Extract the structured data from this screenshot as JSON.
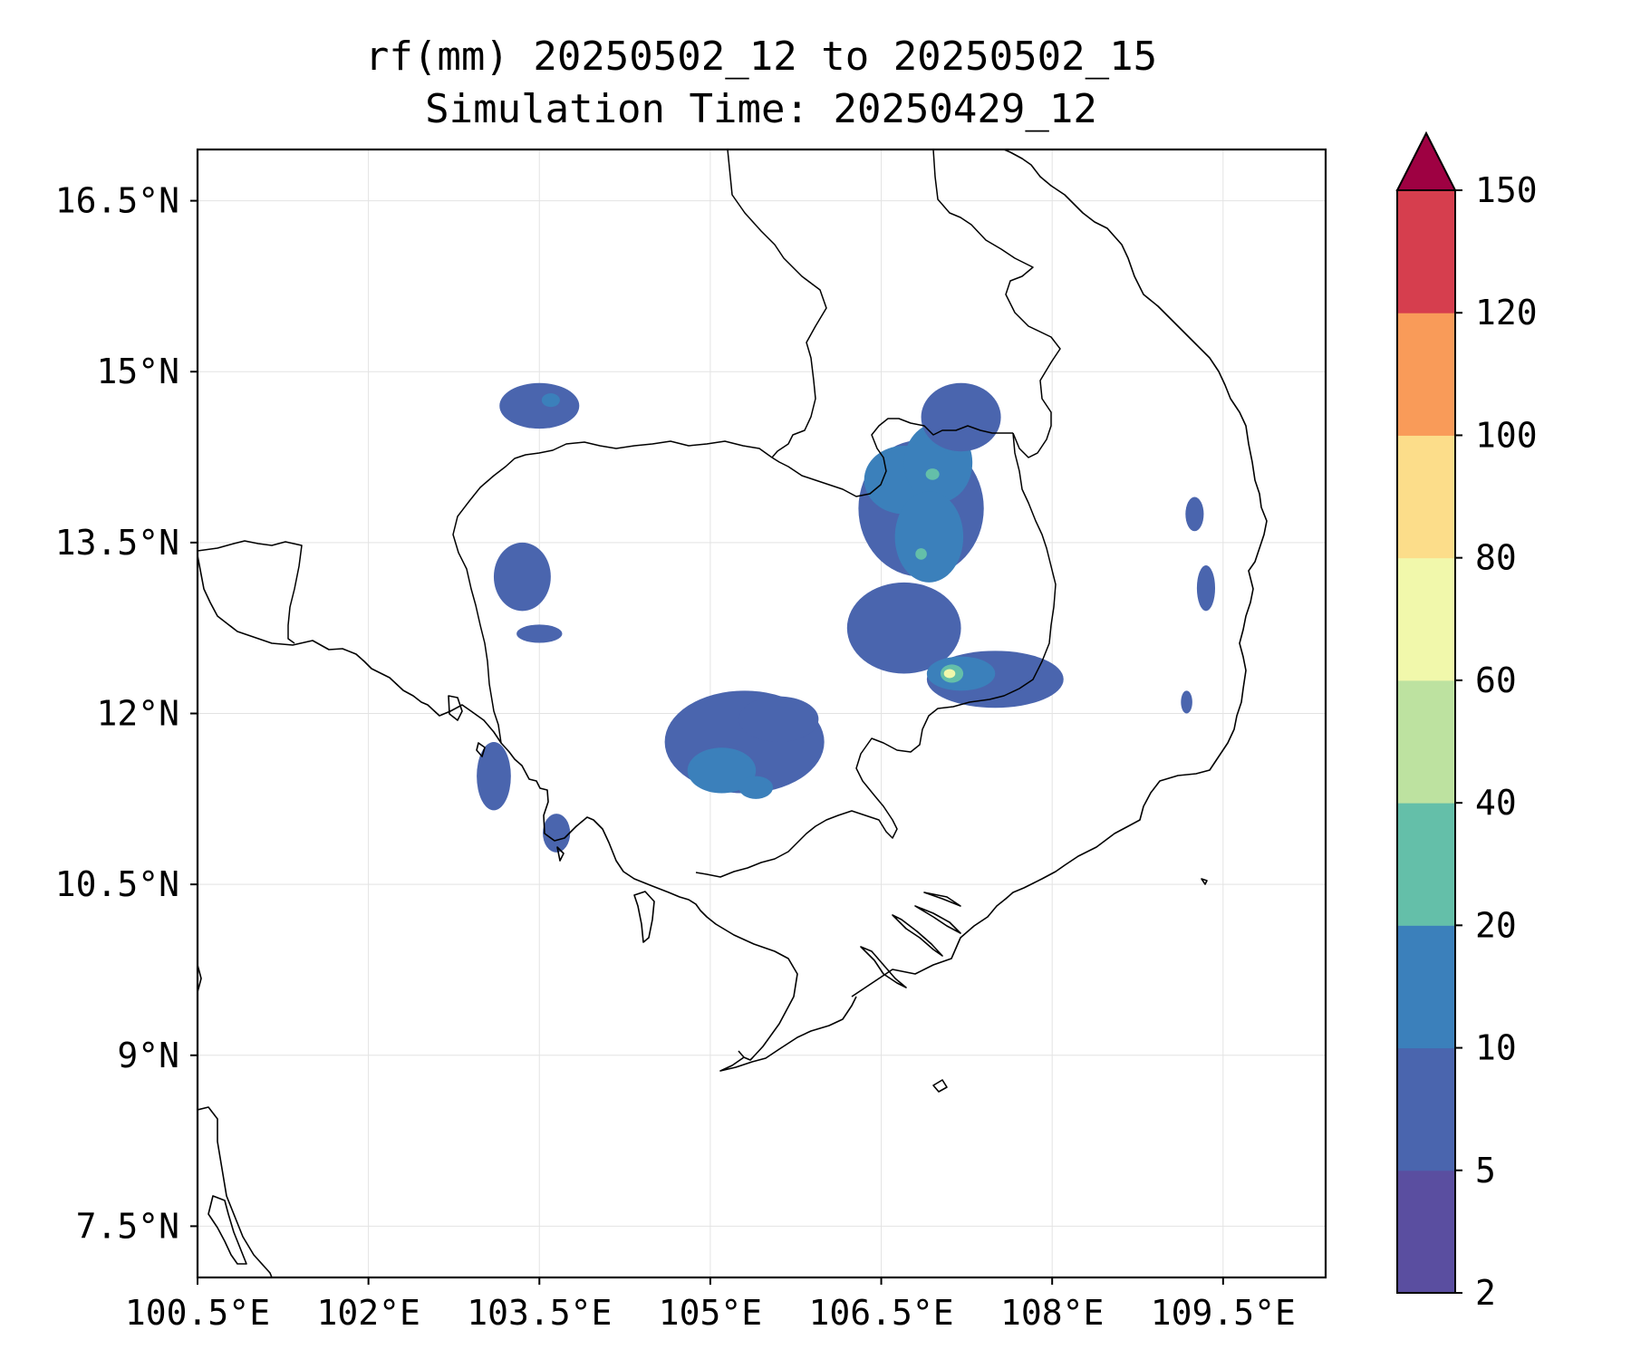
{
  "title_line1": "rf(mm) 20250502_12 to 20250502_15",
  "title_line2": "Simulation Time: 20250429_12",
  "chart_data": {
    "type": "heatmap",
    "title": "rf(mm) 20250502_12 to 20250502_15",
    "subtitle": "Simulation Time: 20250429_12",
    "xlim": [
      100.5,
      110.4
    ],
    "ylim": [
      7.05,
      16.95
    ],
    "xticks": [
      100.5,
      102.0,
      103.5,
      105.0,
      106.5,
      108.0,
      109.5
    ],
    "xtick_labels": [
      "100.5°E",
      "102°E",
      "103.5°E",
      "105°E",
      "106.5°E",
      "108°E",
      "109.5°E"
    ],
    "yticks": [
      7.5,
      9.0,
      10.5,
      12.0,
      13.5,
      15.0,
      16.5
    ],
    "ytick_labels": [
      "7.5°N",
      "9°N",
      "10.5°N",
      "12°N",
      "13.5°N",
      "15°N",
      "16.5°N"
    ],
    "grid": true,
    "colorbar": {
      "levels": [
        2,
        5,
        10,
        20,
        40,
        60,
        80,
        100,
        120,
        150
      ],
      "level_labels": [
        "2",
        "5",
        "10",
        "20",
        "40",
        "60",
        "80",
        "100",
        "120",
        "150"
      ],
      "colors": [
        "#5a4ea0",
        "#4a65ae",
        "#3b80bb",
        "#64bfa9",
        "#bde2a0",
        "#f1f8ab",
        "#fcdd8a",
        "#f99b59",
        "#d63e4e"
      ],
      "extend_color": "#9e0142",
      "extend": "max"
    },
    "rain_areas": [
      {
        "lon": 106.85,
        "lat": 13.8,
        "rx": 0.55,
        "ry": 0.6,
        "level": 5
      },
      {
        "lon": 106.7,
        "lat": 14.05,
        "rx": 0.35,
        "ry": 0.3,
        "level": 10
      },
      {
        "lon": 107.0,
        "lat": 14.2,
        "rx": 0.3,
        "ry": 0.35,
        "level": 10
      },
      {
        "lon": 106.92,
        "lat": 13.55,
        "rx": 0.3,
        "ry": 0.4,
        "level": 10
      },
      {
        "lon": 106.95,
        "lat": 14.1,
        "rx": 0.06,
        "ry": 0.05,
        "level": 20
      },
      {
        "lon": 106.85,
        "lat": 13.4,
        "rx": 0.05,
        "ry": 0.05,
        "level": 20
      },
      {
        "lon": 107.2,
        "lat": 14.6,
        "rx": 0.35,
        "ry": 0.3,
        "level": 5
      },
      {
        "lon": 106.7,
        "lat": 12.75,
        "rx": 0.5,
        "ry": 0.4,
        "level": 5
      },
      {
        "lon": 107.5,
        "lat": 12.3,
        "rx": 0.6,
        "ry": 0.25,
        "level": 5
      },
      {
        "lon": 107.2,
        "lat": 12.35,
        "rx": 0.3,
        "ry": 0.15,
        "level": 10
      },
      {
        "lon": 107.12,
        "lat": 12.35,
        "rx": 0.1,
        "ry": 0.08,
        "level": 20
      },
      {
        "lon": 107.1,
        "lat": 12.35,
        "rx": 0.05,
        "ry": 0.04,
        "level": 60
      },
      {
        "lon": 105.3,
        "lat": 11.75,
        "rx": 0.7,
        "ry": 0.45,
        "level": 5
      },
      {
        "lon": 105.1,
        "lat": 11.5,
        "rx": 0.3,
        "ry": 0.2,
        "level": 10
      },
      {
        "lon": 105.4,
        "lat": 11.35,
        "rx": 0.15,
        "ry": 0.1,
        "level": 10
      },
      {
        "lon": 105.6,
        "lat": 11.95,
        "rx": 0.35,
        "ry": 0.2,
        "level": 5
      },
      {
        "lon": 103.5,
        "lat": 14.7,
        "rx": 0.35,
        "ry": 0.2,
        "level": 5
      },
      {
        "lon": 103.6,
        "lat": 14.75,
        "rx": 0.08,
        "ry": 0.06,
        "level": 10
      },
      {
        "lon": 103.35,
        "lat": 13.2,
        "rx": 0.25,
        "ry": 0.3,
        "level": 5
      },
      {
        "lon": 103.5,
        "lat": 12.7,
        "rx": 0.2,
        "ry": 0.08,
        "level": 5
      },
      {
        "lon": 103.1,
        "lat": 11.45,
        "rx": 0.15,
        "ry": 0.3,
        "level": 5
      },
      {
        "lon": 103.65,
        "lat": 10.95,
        "rx": 0.12,
        "ry": 0.17,
        "level": 5
      },
      {
        "lon": 109.35,
        "lat": 13.1,
        "rx": 0.08,
        "ry": 0.2,
        "level": 5
      },
      {
        "lon": 109.25,
        "lat": 13.75,
        "rx": 0.08,
        "ry": 0.15,
        "level": 5
      },
      {
        "lon": 109.18,
        "lat": 12.1,
        "rx": 0.05,
        "ry": 0.1,
        "level": 5
      }
    ]
  }
}
